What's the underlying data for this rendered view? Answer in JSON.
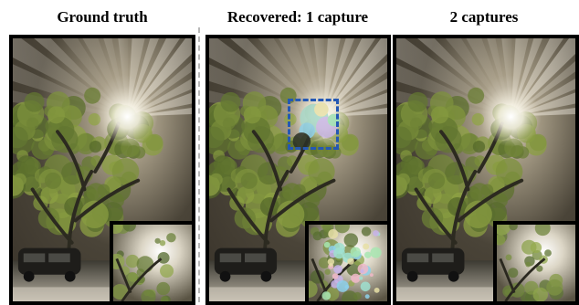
{
  "figure": {
    "headings": {
      "ground_truth": "Ground truth",
      "recovered_one": "Recovered: 1 capture",
      "recovered_two": "2 captures"
    },
    "panels": [
      {
        "id": "ground-truth",
        "heading_key": "ground_truth",
        "artifact": false,
        "roi_box": false
      },
      {
        "id": "recovered-one",
        "heading_key": "recovered_one",
        "artifact": true,
        "roi_box": true
      },
      {
        "id": "recovered-two",
        "heading_key": "recovered_two",
        "artifact": false,
        "roi_box": false
      }
    ],
    "colors": {
      "roi_box": "#2458b4",
      "divider": "#b9b9b9",
      "frame": "#000000",
      "foliage": "#6f7a3c",
      "sky": "#3a342b"
    }
  }
}
